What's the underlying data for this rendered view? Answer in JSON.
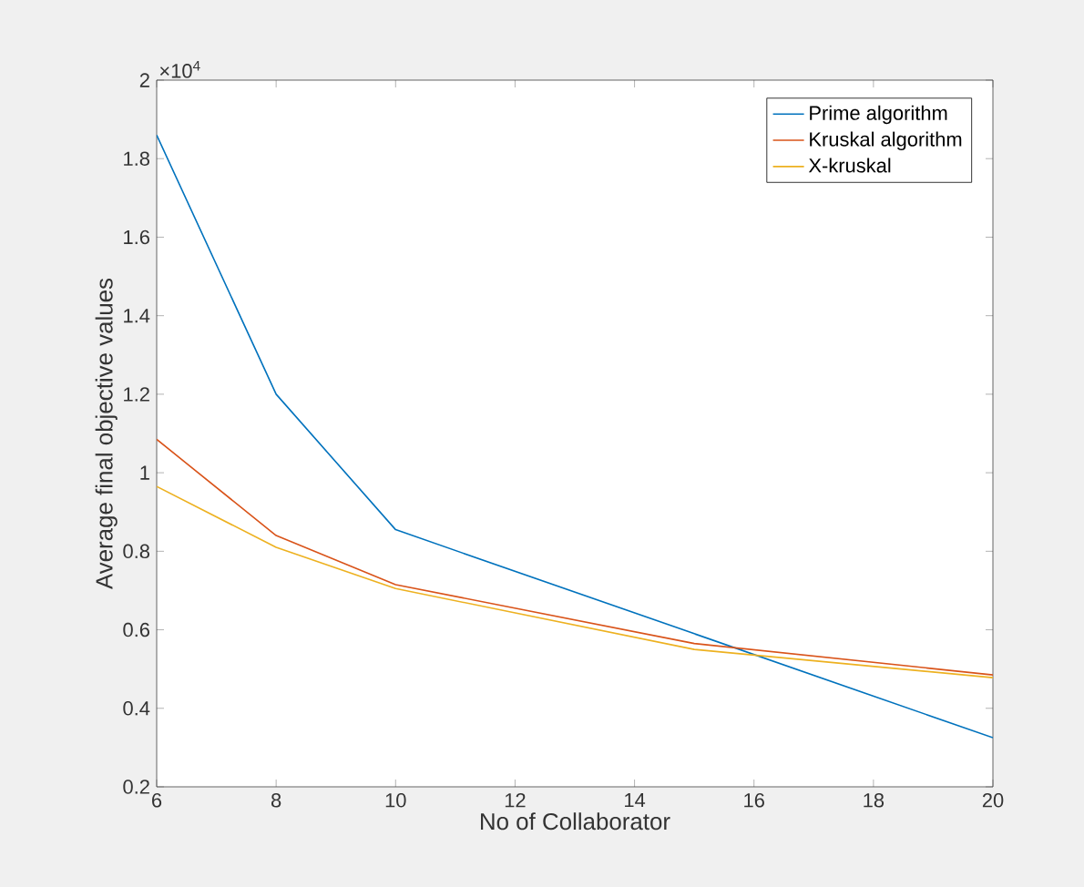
{
  "chart_data": {
    "type": "line",
    "xlabel": "No of Collaborator",
    "ylabel": "Average final objective values",
    "x": [
      6,
      8,
      10,
      15,
      20
    ],
    "series": [
      {
        "name": "Prime algorithm",
        "color": "#0072bd",
        "values": [
          1.86,
          1.2,
          0.855,
          0.59,
          0.325
        ]
      },
      {
        "name": "Kruskal algorithm",
        "color": "#d95319",
        "values": [
          1.085,
          0.84,
          0.715,
          0.565,
          0.485
        ]
      },
      {
        "name": "X-kruskal",
        "color": "#edb120",
        "values": [
          0.965,
          0.81,
          0.705,
          0.55,
          0.478
        ]
      }
    ],
    "xlim": [
      6,
      20
    ],
    "xticks": [
      6,
      8,
      10,
      12,
      14,
      16,
      18,
      20
    ],
    "ylim": [
      0.2,
      2
    ],
    "yticks": [
      0.2,
      0.4,
      0.6,
      0.8,
      1,
      1.2,
      1.4,
      1.6,
      1.8,
      2
    ],
    "annotations": [
      "×10$^{4}$"
    ],
    "legend": "top right",
    "grid": false,
    "marker": "none",
    "line_style": "solid"
  }
}
